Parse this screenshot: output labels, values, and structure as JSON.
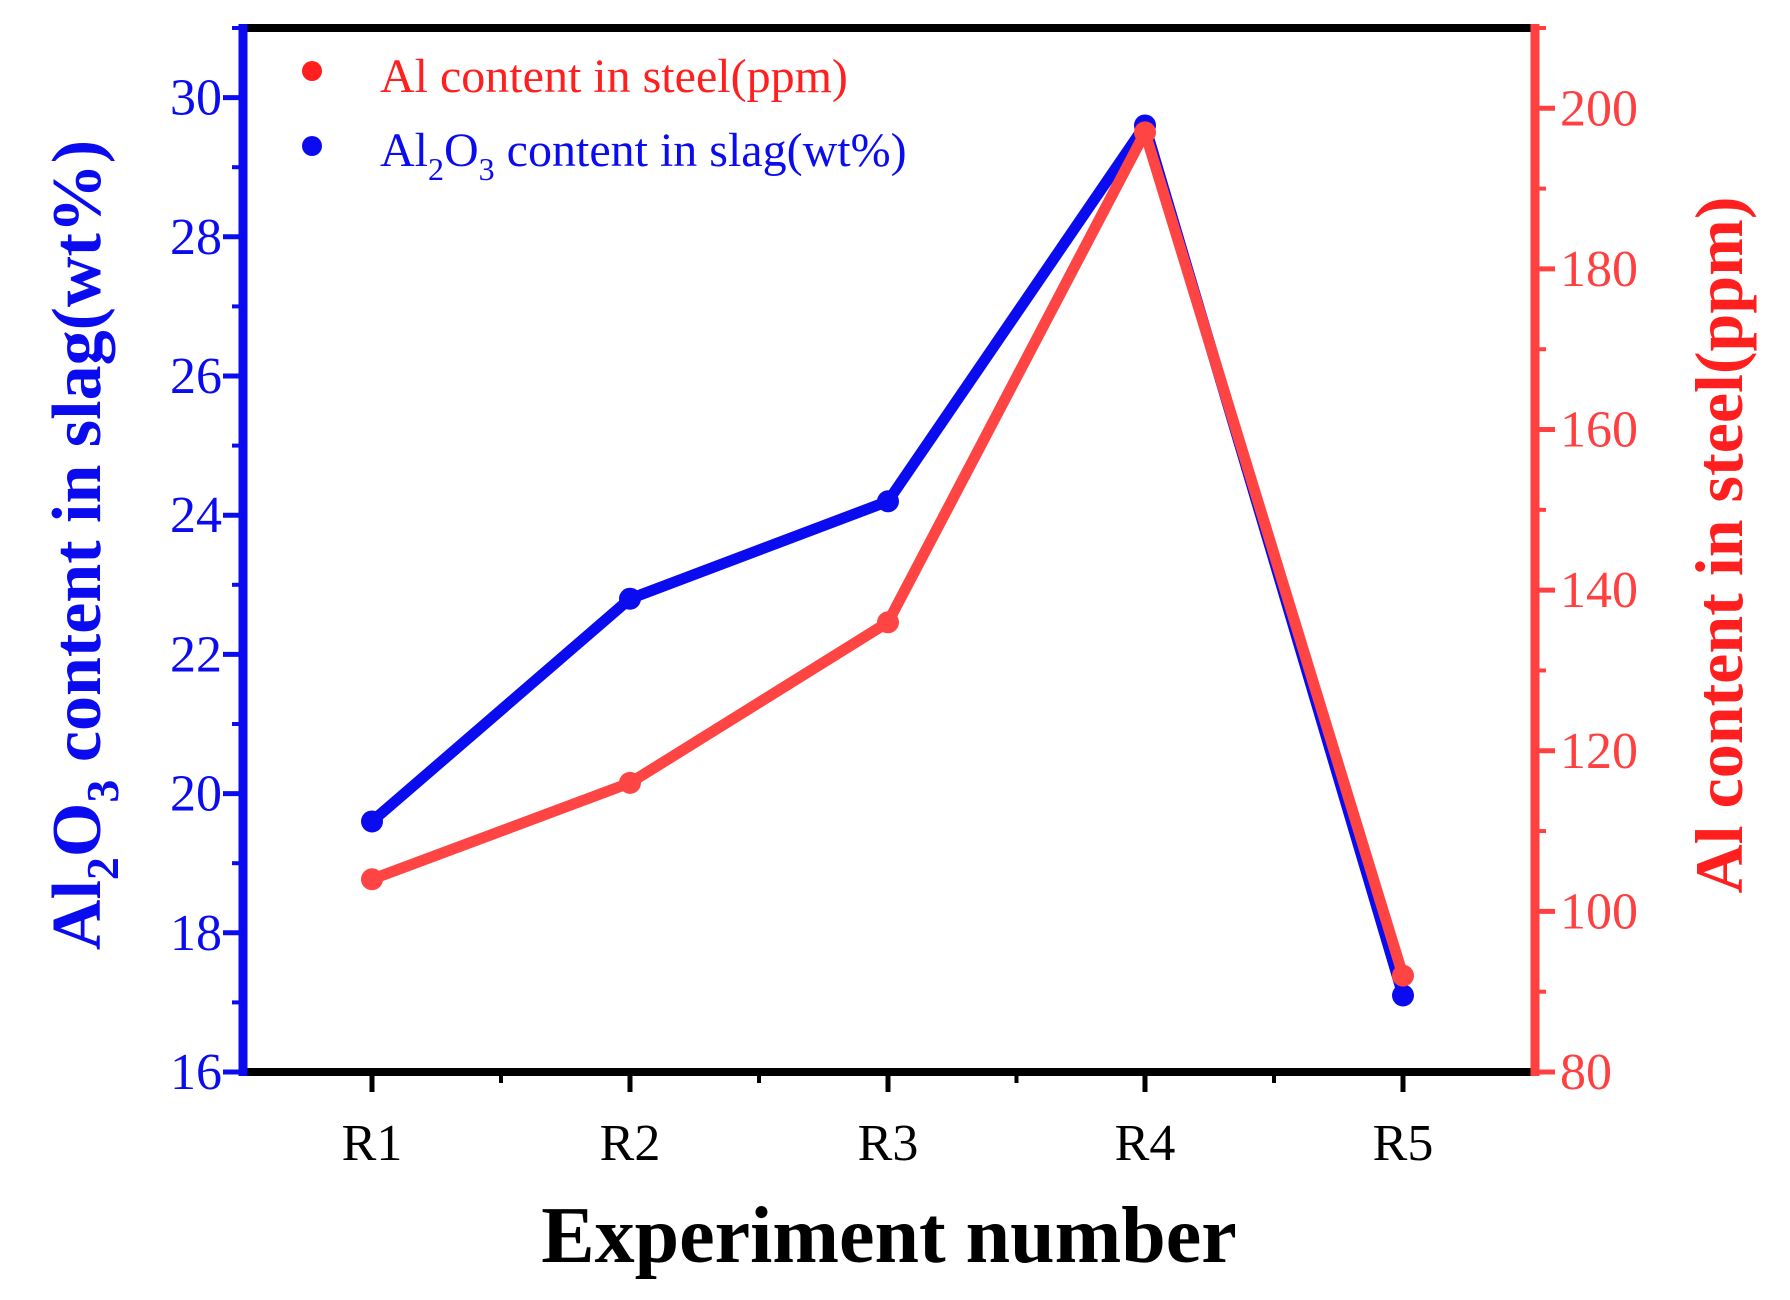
{
  "chart_data": {
    "type": "line",
    "xlabel": "Experiment number",
    "categories": [
      "R1",
      "R2",
      "R3",
      "R4",
      "R5"
    ],
    "left_axis": {
      "label_parts": [
        "Al",
        "2",
        "O",
        "3",
        " content in slag(wt%)"
      ],
      "ylim": [
        16,
        31
      ],
      "ticks": [
        "16",
        "18",
        "20",
        "22",
        "24",
        "26",
        "28",
        "30"
      ],
      "color": "#0b0bf0"
    },
    "right_axis": {
      "label": "Al content in steel(ppm)",
      "ylim": [
        80,
        210
      ],
      "ticks": [
        "80",
        "100",
        "120",
        "140",
        "160",
        "180",
        "200"
      ],
      "color": "#ff4040"
    },
    "series": [
      {
        "name": "Al content in steel(ppm)",
        "axis": "right",
        "color": "#ff4444",
        "values": [
          104,
          116,
          136,
          197,
          92
        ]
      },
      {
        "name_parts": [
          "Al",
          "2",
          "O",
          "3",
          " content in slag(wt%)"
        ],
        "axis": "left",
        "color": "#0b0bf0",
        "values": [
          19.6,
          22.8,
          24.2,
          29.6,
          17.1
        ]
      }
    ],
    "legend": {
      "position": "top-left",
      "items": [
        {
          "text": "Al content in steel(ppm)",
          "color": "#ff1f1f"
        },
        {
          "text_parts": [
            "Al",
            "2",
            "O",
            "3",
            " content in slag(wt%)"
          ],
          "color": "#0b0bf0"
        }
      ]
    }
  }
}
